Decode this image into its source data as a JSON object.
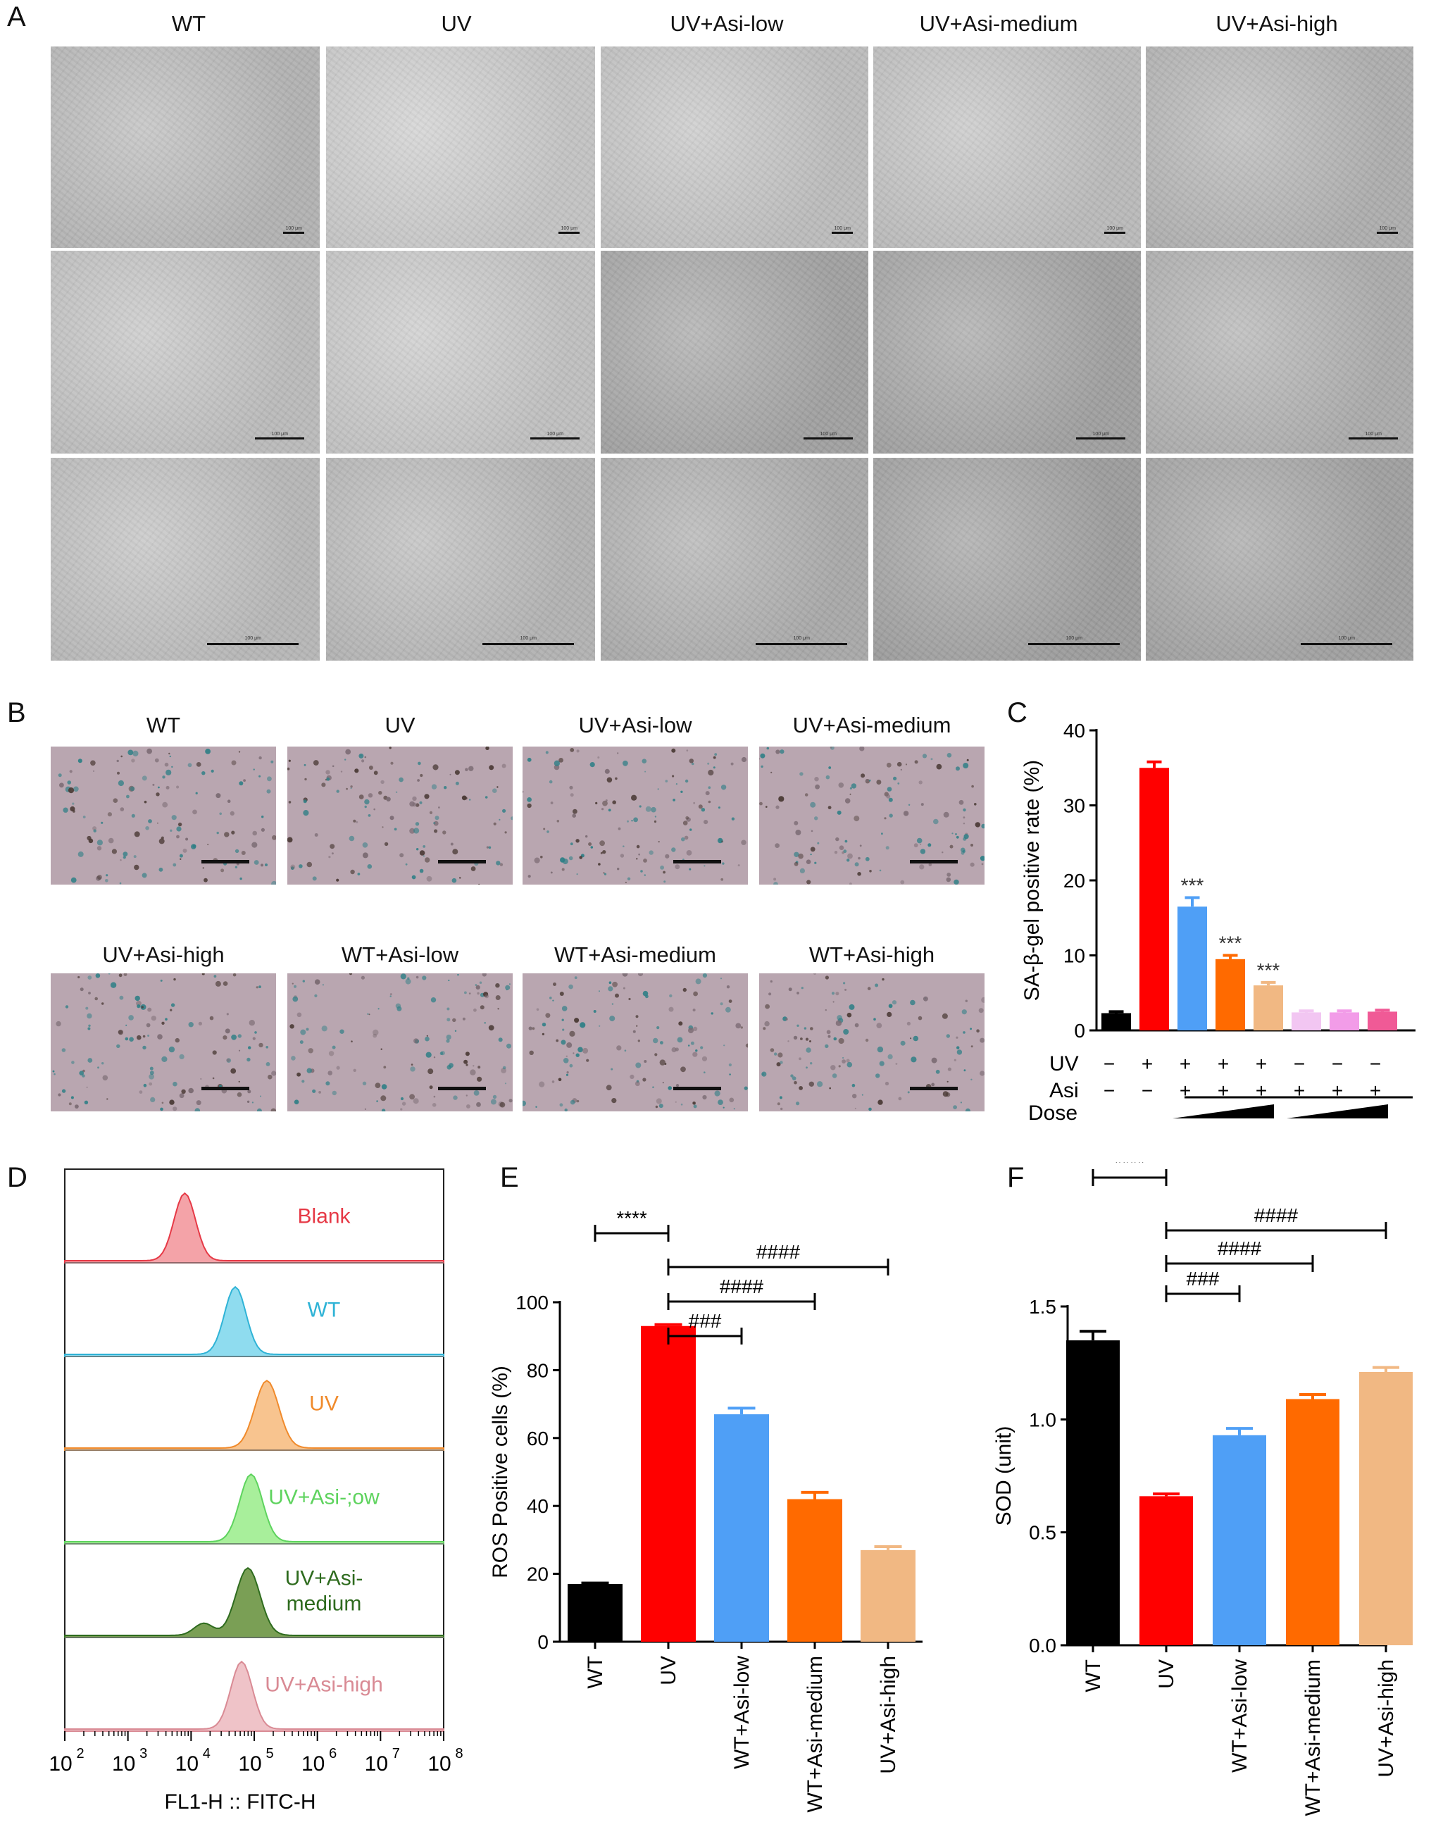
{
  "panelA": {
    "letter": "A",
    "columns": [
      "WT",
      "UV",
      "UV+Asi-low",
      "UV+Asi-medium",
      "UV+Asi-high"
    ],
    "scalebar_label": "100 μm"
  },
  "panelB": {
    "letter": "B",
    "labels": [
      "WT",
      "UV",
      "UV+Asi-low",
      "UV+Asi-medium",
      "UV+Asi-high",
      "WT+Asi-low",
      "WT+Asi-medium",
      "WT+Asi-high"
    ]
  },
  "panelC": {
    "letter": "C",
    "ylabel": "SA-β-gel positive rate (%)",
    "row_labels": [
      "UV",
      "Asi",
      "Dose"
    ],
    "uv_signs": [
      "−",
      "+",
      "+",
      "+",
      "+",
      "−",
      "−",
      "−"
    ],
    "asi_signs": [
      "−",
      "−",
      "+",
      "+",
      "+",
      "+",
      "+",
      "+"
    ],
    "significance": [
      "",
      "",
      "***",
      "***",
      "***",
      "",
      "",
      ""
    ]
  },
  "panelD": {
    "letter": "D",
    "xlabel": "FL1-H :: FITC-H",
    "tracks": [
      {
        "label": "Blank",
        "color": "#e63946",
        "fill": "#f4a3a8"
      },
      {
        "label": "WT",
        "color": "#2fb3d6",
        "fill": "#8fdcef"
      },
      {
        "label": "UV",
        "color": "#f08a2b",
        "fill": "#f8c48f"
      },
      {
        "label": "UV+Asi-;ow",
        "color": "#5ed35e",
        "fill": "#a8ef9b"
      },
      {
        "label": "UV+Asi-\nmedium",
        "color": "#2e6b1e",
        "fill": "#7a9f55"
      },
      {
        "label": "UV+Asi-high",
        "color": "#d98a94",
        "fill": "#efc3c8"
      }
    ],
    "tick_labels": [
      "10",
      "10",
      "10",
      "10",
      "10",
      "10",
      "10"
    ],
    "tick_exponents": [
      "2",
      "3",
      "4",
      "5",
      "6",
      "7",
      "8"
    ]
  },
  "panelE": {
    "letter": "E",
    "ylabel": "ROS Positive cells (%)",
    "brackets": [
      {
        "from": 0,
        "to": 1,
        "label": "****"
      },
      {
        "from": 1,
        "to": 2,
        "label": "###"
      },
      {
        "from": 1,
        "to": 3,
        "label": "####"
      },
      {
        "from": 1,
        "to": 4,
        "label": "####"
      }
    ]
  },
  "panelF": {
    "letter": "F",
    "ylabel": "SOD (unit)",
    "brackets": [
      {
        "from": 0,
        "to": 1,
        "label": "****"
      },
      {
        "from": 1,
        "to": 2,
        "label": "###"
      },
      {
        "from": 1,
        "to": 3,
        "label": "####"
      },
      {
        "from": 1,
        "to": 4,
        "label": "####"
      }
    ]
  },
  "chart_data": [
    {
      "type": "bar",
      "panel": "C",
      "categories": [
        "1",
        "2",
        "3",
        "4",
        "5",
        "6",
        "7",
        "8"
      ],
      "values": [
        2.3,
        35.0,
        16.5,
        9.5,
        6.0,
        2.4,
        2.4,
        2.5
      ],
      "errors": [
        0.2,
        0.8,
        1.2,
        0.5,
        0.4,
        0.2,
        0.2,
        0.2
      ],
      "colors": [
        "#000000",
        "#ff0000",
        "#4f9ff6",
        "#ff6a00",
        "#f1b883",
        "#f2c6f2",
        "#f29ce8",
        "#f05a96"
      ],
      "ylabel": "SA-β-gel positive rate (%)",
      "ylim": [
        0,
        40
      ],
      "yticks": [
        0,
        10,
        20,
        30,
        40
      ]
    },
    {
      "type": "bar",
      "panel": "E",
      "categories": [
        "WT",
        "UV",
        "WT+Asi-low",
        "WT+Asi-medium",
        "UV+Asi-high"
      ],
      "values": [
        17,
        93,
        67,
        42,
        27
      ],
      "errors": [
        0.3,
        0.4,
        1.8,
        2.0,
        1.0
      ],
      "colors": [
        "#000000",
        "#ff0000",
        "#4f9ff6",
        "#ff6a00",
        "#f1b883"
      ],
      "ylabel": "ROS Positive cells (%)",
      "ylim": [
        0,
        100
      ],
      "yticks": [
        0,
        20,
        40,
        60,
        80,
        100
      ]
    },
    {
      "type": "bar",
      "panel": "F",
      "categories": [
        "WT",
        "UV",
        "WT+Asi-low",
        "WT+Asi-medium",
        "UV+Asi-high"
      ],
      "values": [
        1.35,
        0.66,
        0.93,
        1.09,
        1.21
      ],
      "errors": [
        0.04,
        0.01,
        0.03,
        0.02,
        0.02
      ],
      "colors": [
        "#000000",
        "#ff0000",
        "#4f9ff6",
        "#ff6a00",
        "#f1b883"
      ],
      "ylabel": "SOD (unit)",
      "ylim": [
        0,
        1.5
      ],
      "yticks": [
        "0.0",
        "0.5",
        "1.0",
        "1.5"
      ]
    }
  ]
}
